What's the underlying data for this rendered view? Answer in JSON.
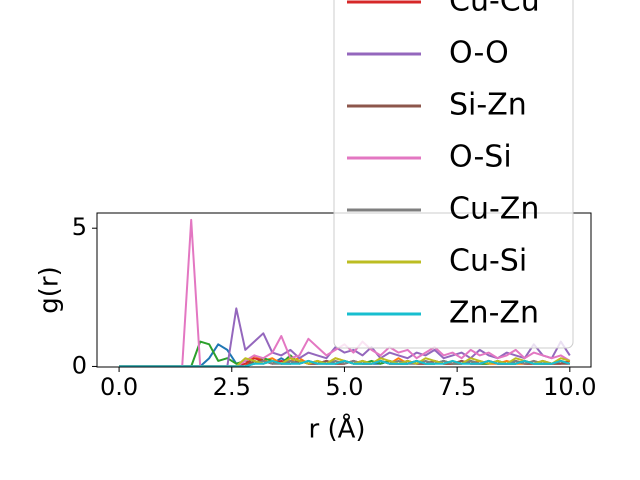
{
  "chart_data": {
    "type": "line",
    "xlabel": "r (Å)",
    "ylabel": "g(r)",
    "xlim": [
      -0.49,
      10.47
    ],
    "ylim": [
      -0.02,
      5.55
    ],
    "xticks": [
      {
        "value": 0,
        "label": "0.0"
      },
      {
        "value": 2.5,
        "label": "2.5"
      },
      {
        "value": 5,
        "label": "5.0"
      },
      {
        "value": 7.5,
        "label": "7.5"
      },
      {
        "value": 10,
        "label": "10.0"
      }
    ],
    "yticks": [
      0,
      5
    ],
    "legend": "upper right",
    "x": [
      0,
      0.2,
      0.4,
      0.6,
      0.8,
      1.0,
      1.2,
      1.4,
      1.6,
      1.8,
      2.0,
      2.2,
      2.4,
      2.6,
      2.8,
      3.0,
      3.2,
      3.4,
      3.6,
      3.8,
      4.0,
      4.2,
      4.4,
      4.6,
      4.8,
      5.0,
      5.2,
      5.4,
      5.6,
      5.8,
      6.0,
      6.2,
      6.4,
      6.6,
      6.8,
      7.0,
      7.2,
      7.4,
      7.6,
      7.8,
      8.0,
      8.2,
      8.4,
      8.6,
      8.8,
      9.0,
      9.2,
      9.4,
      9.6,
      9.8,
      10.0
    ],
    "series": [
      {
        "color": "#1f77b4",
        "values": [
          0,
          0,
          0,
          0,
          0,
          0,
          0,
          0,
          0,
          0,
          0.3,
          0.8,
          0.6,
          0.1,
          0.2,
          0.1,
          0.2,
          0.1,
          0.3,
          0.1,
          0.2,
          0.1,
          0.2,
          0.1,
          0.1,
          0.2,
          0.1,
          0.2,
          0.1,
          0.1,
          0.2,
          0.1,
          0.1,
          0.2,
          0.1,
          0.1,
          0.2,
          0.1,
          0.1,
          0.2,
          0.1,
          0.1,
          0.2,
          0.1,
          0.1,
          0.2,
          0.1,
          0.1,
          0.1,
          0.2,
          0.1
        ]
      },
      {
        "color": "#ff7f0e",
        "values": [
          0,
          0,
          0,
          0,
          0,
          0,
          0,
          0,
          0,
          0,
          0,
          0,
          0,
          0,
          0,
          0.4,
          0.2,
          0.3,
          0.1,
          0.2,
          0.3,
          0.1,
          0.2,
          0.1,
          0.3,
          0.2,
          0.1,
          0.2,
          0.1,
          0.2,
          0.1,
          0.3,
          0.1,
          0.2,
          0.1,
          0.2,
          0.1,
          0.1,
          0.2,
          0.1,
          0.2,
          0.1,
          0.1,
          0.2,
          0.1,
          0.1,
          0.2,
          0.1,
          0.1,
          0.2,
          0.1
        ]
      },
      {
        "color": "#2ca02c",
        "values": [
          0,
          0,
          0,
          0,
          0,
          0,
          0,
          0,
          0,
          0.9,
          0.8,
          0.2,
          0.3,
          0.1,
          0.2,
          0.1,
          0.3,
          0.2,
          0.1,
          0.4,
          0.1,
          0.2,
          0.1,
          0.2,
          0.1,
          0.2,
          0.1,
          0.1,
          0.2,
          0.1,
          0.2,
          0.1,
          0.1,
          0.2,
          0.1,
          0.1,
          0.2,
          0.1,
          0.1,
          0.2,
          0.1,
          0.1,
          0.2,
          0.1,
          0.1,
          0.2,
          0.1,
          0.1,
          0.1,
          0.2,
          0.1
        ]
      },
      {
        "name": "Cu-Cu",
        "color": "#d62728",
        "values": [
          0,
          0,
          0,
          0,
          0,
          0,
          0,
          0,
          0,
          0,
          0,
          0,
          0,
          0,
          0.1,
          0.3,
          0.2,
          0.1,
          0.2,
          0.1,
          0.2,
          0.1,
          0.1,
          0.2,
          0.1,
          0.1,
          0.2,
          0.1,
          0.1,
          0.2,
          0.1,
          0.1,
          0.2,
          0.1,
          0.1,
          0.2,
          0.1,
          0.1,
          0.2,
          0.1,
          0.1,
          0.2,
          0.1,
          0.1,
          0.2,
          0.1,
          0.1,
          0.2,
          0.1,
          0.1,
          0.2
        ]
      },
      {
        "name": "O-O",
        "color": "#9467bd",
        "values": [
          0,
          0,
          0,
          0,
          0,
          0,
          0,
          0,
          0,
          0,
          0,
          0,
          0,
          2.1,
          0.6,
          0.9,
          1.2,
          0.5,
          0.4,
          0.6,
          0.3,
          0.5,
          0.4,
          0.3,
          0.7,
          0.5,
          0.6,
          0.4,
          0.7,
          0.3,
          0.5,
          0.4,
          0.3,
          0.5,
          0.4,
          0.6,
          0.3,
          0.4,
          0.5,
          0.3,
          0.6,
          0.4,
          0.3,
          0.5,
          0.4,
          0.3,
          0.8,
          0.4,
          0.3,
          0.9,
          0.4
        ]
      },
      {
        "name": "Si-Zn",
        "color": "#8c564b",
        "values": [
          0,
          0,
          0,
          0,
          0,
          0,
          0,
          0,
          0,
          0,
          0,
          0,
          0,
          0,
          0,
          0.2,
          0.1,
          0.2,
          0.1,
          0.1,
          0.2,
          0.1,
          0.1,
          0.2,
          0.1,
          0.1,
          0.2,
          0.1,
          0.1,
          0.2,
          0.1,
          0.1,
          0.2,
          0.1,
          0.1,
          0.2,
          0.1,
          0.1,
          0.2,
          0.1,
          0.1,
          0.2,
          0.1,
          0.1,
          0.2,
          0.1,
          0.1,
          0.2,
          0.1,
          0.1,
          0.1
        ]
      },
      {
        "name": "O-Si",
        "color": "#e377c2",
        "values": [
          0,
          0,
          0,
          0,
          0,
          0,
          0,
          0,
          5.3,
          0,
          0,
          0,
          0,
          0,
          0.2,
          0.4,
          0.3,
          0.5,
          1.1,
          0.3,
          0.4,
          1.0,
          0.7,
          0.4,
          0.6,
          0.8,
          0.5,
          0.9,
          0.6,
          0.4,
          0.7,
          0.5,
          0.6,
          0.3,
          0.5,
          0.7,
          0.4,
          0.5,
          0.3,
          0.6,
          0.4,
          0.5,
          0.3,
          0.4,
          0.6,
          0.3,
          0.5,
          0.4,
          0.3,
          0.4,
          0.2
        ]
      },
      {
        "name": "Cu-Zn",
        "color": "#7f7f7f",
        "values": [
          0,
          0,
          0,
          0,
          0,
          0,
          0,
          0,
          0,
          0,
          0,
          0,
          0,
          0,
          0,
          0.1,
          0.2,
          0.1,
          0.1,
          0.2,
          0.1,
          0.2,
          0.1,
          0.1,
          0.2,
          0.1,
          0.2,
          0.1,
          0.1,
          0.2,
          0.1,
          0.2,
          0.1,
          0.1,
          0.2,
          0.1,
          0.2,
          0.1,
          0.1,
          0.2,
          0.1,
          0.2,
          0.1,
          0.1,
          0.2,
          0.1,
          0.2,
          0.1,
          0.1,
          0.2,
          0.1
        ]
      },
      {
        "name": "Cu-Si",
        "color": "#bcbd22",
        "values": [
          0,
          0,
          0,
          0,
          0,
          0,
          0,
          0,
          0,
          0,
          0,
          0,
          0,
          0,
          0.3,
          0.2,
          0.1,
          0.2,
          0.1,
          0.3,
          0.2,
          0.1,
          0.2,
          0.1,
          0.3,
          0.2,
          0.1,
          0.2,
          0.1,
          0.3,
          0.2,
          0.1,
          0.2,
          0.1,
          0.3,
          0.2,
          0.1,
          0.2,
          0.1,
          0.3,
          0.2,
          0.1,
          0.2,
          0.1,
          0.3,
          0.2,
          0.1,
          0.2,
          0.1,
          0.3,
          0.2
        ]
      },
      {
        "name": "Zn-Zn",
        "color": "#17becf",
        "values": [
          0,
          0,
          0,
          0,
          0,
          0,
          0,
          0,
          0,
          0,
          0,
          0,
          0,
          0,
          0,
          0.1,
          0.1,
          0.2,
          0.1,
          0.1,
          0.1,
          0.2,
          0.1,
          0.1,
          0.1,
          0.2,
          0.1,
          0.1,
          0.1,
          0.2,
          0.1,
          0.1,
          0.1,
          0.2,
          0.1,
          0.1,
          0.1,
          0.2,
          0.1,
          0.1,
          0.1,
          0.2,
          0.1,
          0.1,
          0.1,
          0.2,
          0.1,
          0.1,
          0.1,
          0.2,
          0.1
        ]
      }
    ]
  }
}
